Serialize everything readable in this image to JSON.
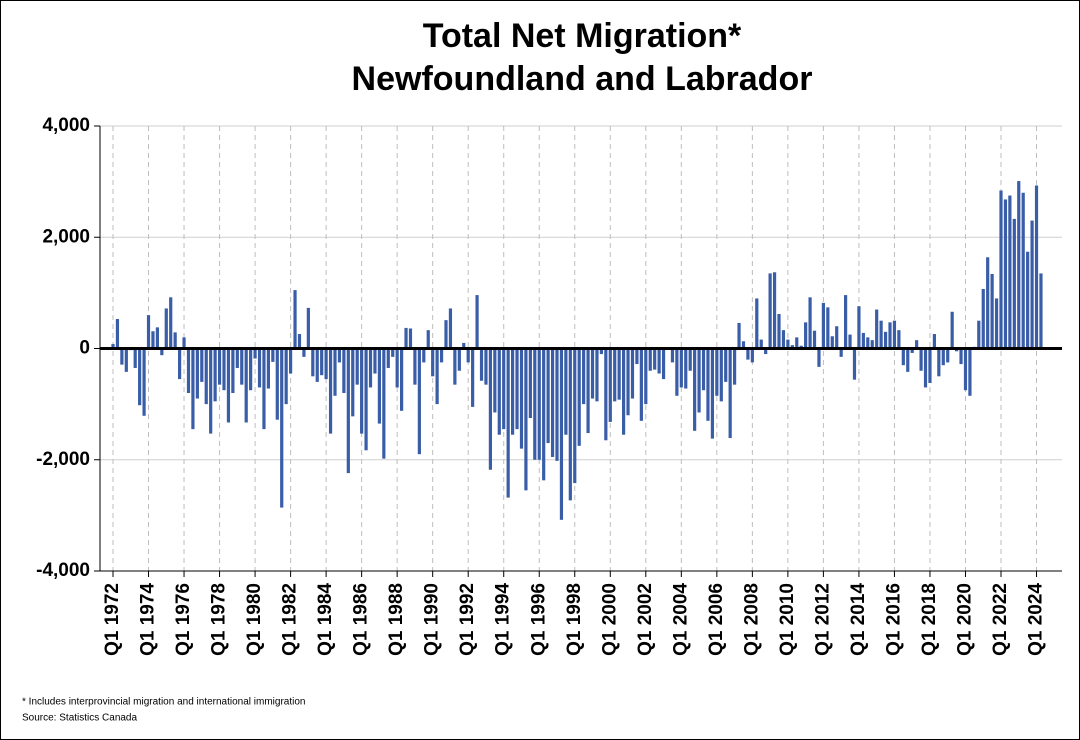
{
  "chart_data": {
    "type": "bar",
    "title": "Total Net Migration*",
    "subtitle": "Newfoundland and Labrador",
    "footnote": "* Includes interprovincial migration and international immigration",
    "source": "Source: Statistics Canada",
    "color": "#3a5da8",
    "ylim": [
      -4000,
      4000
    ],
    "yticks": [
      {
        "value": -4000,
        "label": "-4,000"
      },
      {
        "value": -2000,
        "label": "-2,000"
      },
      0,
      {
        "value": 2000,
        "label": "2,000"
      },
      {
        "value": 4000,
        "label": "4,000"
      }
    ],
    "grid": true,
    "categories": [
      "Q1 1972",
      null,
      null,
      null,
      null,
      null,
      null,
      null,
      "Q1 1974",
      null,
      null,
      null,
      null,
      null,
      null,
      null,
      "Q1 1976",
      null,
      null,
      null,
      null,
      null,
      null,
      null,
      "Q1 1978",
      null,
      null,
      null,
      null,
      null,
      null,
      null,
      "Q1 1980",
      null,
      null,
      null,
      null,
      null,
      null,
      null,
      "Q1 1982",
      null,
      null,
      null,
      null,
      null,
      null,
      null,
      "Q1 1984",
      null,
      null,
      null,
      null,
      null,
      null,
      null,
      "Q1 1986",
      null,
      null,
      null,
      null,
      null,
      null,
      null,
      "Q1 1988",
      null,
      null,
      null,
      null,
      null,
      null,
      null,
      "Q1 1990",
      null,
      null,
      null,
      null,
      null,
      null,
      null,
      "Q1 1992",
      null,
      null,
      null,
      null,
      null,
      null,
      null,
      "Q1 1994",
      null,
      null,
      null,
      null,
      null,
      null,
      null,
      "Q1 1996",
      null,
      null,
      null,
      null,
      null,
      null,
      null,
      "Q1 1998",
      null,
      null,
      null,
      null,
      null,
      null,
      null,
      "Q1 2000",
      null,
      null,
      null,
      null,
      null,
      null,
      null,
      "Q1 2002",
      null,
      null,
      null,
      null,
      null,
      null,
      null,
      "Q1 2004",
      null,
      null,
      null,
      null,
      null,
      null,
      null,
      "Q1 2006",
      null,
      null,
      null,
      null,
      null,
      null,
      null,
      "Q1 2008",
      null,
      null,
      null,
      null,
      null,
      null,
      null,
      "Q1 2010",
      null,
      null,
      null,
      null,
      null,
      null,
      null,
      "Q1 2012",
      null,
      null,
      null,
      null,
      null,
      null,
      null,
      "Q1 2014",
      null,
      null,
      null,
      null,
      null,
      null,
      null,
      "Q1 2016",
      null,
      null,
      null,
      null,
      null,
      null,
      null,
      "Q1 2018",
      null,
      null,
      null,
      null,
      null,
      null,
      null,
      "Q1 2020",
      null,
      null,
      null,
      null,
      null,
      null,
      null,
      "Q1 2022",
      null,
      null,
      null,
      null,
      null,
      null,
      null,
      "Q1 2024",
      null
    ],
    "values": [
      80,
      530,
      -290,
      -420,
      -30,
      -350,
      -1020,
      -1210,
      600,
      310,
      380,
      -120,
      720,
      920,
      290,
      -550,
      200,
      -800,
      -1450,
      -900,
      -600,
      -1000,
      -1530,
      -950,
      -650,
      -750,
      -1330,
      -800,
      -350,
      -650,
      -1330,
      -750,
      -180,
      -700,
      -1450,
      -720,
      -240,
      -1280,
      -2860,
      -1000,
      -450,
      1050,
      260,
      -150,
      730,
      -500,
      -600,
      -480,
      -550,
      -1530,
      -850,
      -250,
      -800,
      -2240,
      -1220,
      -650,
      -1530,
      -1830,
      -700,
      -450,
      -1350,
      -1980,
      -350,
      -150,
      -700,
      -1120,
      370,
      360,
      -650,
      -1900,
      -250,
      330,
      -500,
      -1000,
      -250,
      510,
      720,
      -650,
      -400,
      100,
      -250,
      -1050,
      960,
      -580,
      -650,
      -2180,
      -1150,
      -1550,
      -1450,
      -2680,
      -1550,
      -1450,
      -1800,
      -2550,
      -1250,
      -2000,
      -2000,
      -2370,
      -1700,
      -1950,
      -2020,
      -3080,
      -1550,
      -2730,
      -2420,
      -1750,
      -1000,
      -1520,
      -900,
      -950,
      -100,
      -1650,
      -1320,
      -950,
      -920,
      -1550,
      -1200,
      -900,
      -280,
      -1300,
      -1000,
      -400,
      -380,
      -450,
      -550,
      0,
      -250,
      -850,
      -700,
      -720,
      -400,
      -1480,
      -1150,
      -750,
      -1300,
      -1620,
      -850,
      -950,
      -600,
      -1610,
      -650,
      460,
      130,
      -200,
      -250,
      900,
      160,
      -100,
      1350,
      1370,
      620,
      330,
      160,
      60,
      200,
      50,
      470,
      920,
      320,
      -330,
      820,
      740,
      220,
      400,
      -150,
      960,
      250,
      -560,
      760,
      280,
      200,
      150,
      700,
      500,
      300,
      470,
      500,
      330,
      -300,
      -420,
      -80,
      150,
      -400,
      -700,
      -620,
      260,
      -500,
      -300,
      -250,
      660,
      -50,
      -280,
      -750,
      -850,
      30,
      500,
      1070,
      1640,
      1340,
      900,
      2840,
      2680,
      2750,
      2330,
      3010,
      2800,
      1740,
      2300,
      2930,
      1350
    ]
  }
}
